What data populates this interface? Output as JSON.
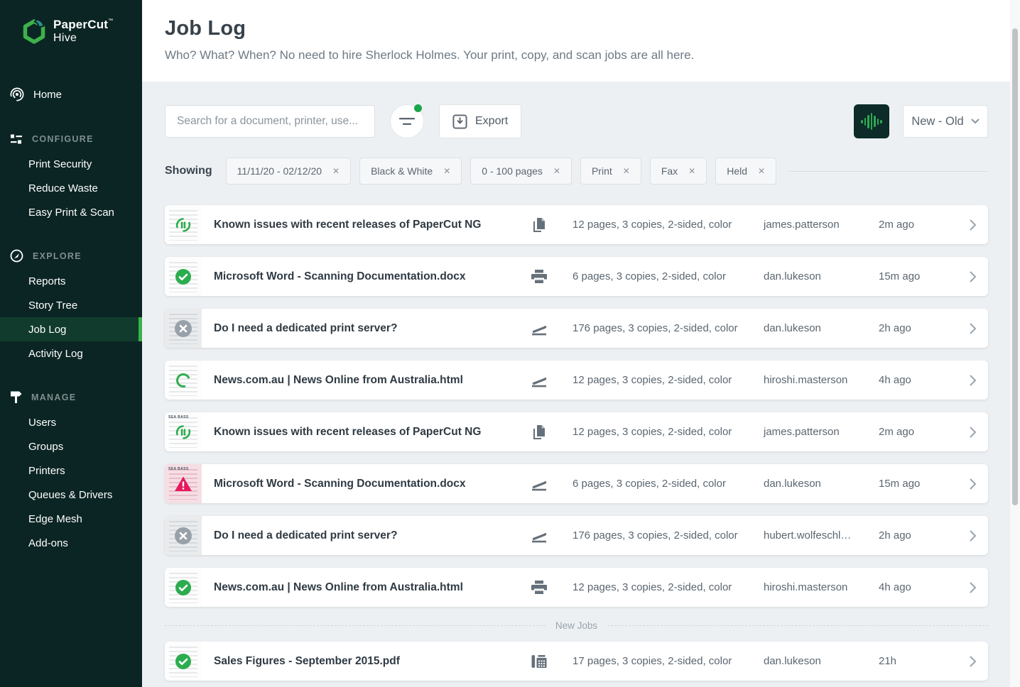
{
  "sidebar": {
    "brand": "PaperCut",
    "brand_tm": "™",
    "product": "Hive",
    "home_label": "Home",
    "sections": [
      {
        "label": "CONFIGURE",
        "items": [
          {
            "label": "Print Security"
          },
          {
            "label": "Reduce Waste"
          },
          {
            "label": "Easy Print & Scan"
          }
        ]
      },
      {
        "label": "EXPLORE",
        "items": [
          {
            "label": "Reports"
          },
          {
            "label": "Story Tree"
          },
          {
            "label": "Job Log",
            "selected": true
          },
          {
            "label": "Activity Log"
          }
        ]
      },
      {
        "label": "MANAGE",
        "items": [
          {
            "label": "Users"
          },
          {
            "label": "Groups"
          },
          {
            "label": "Printers"
          },
          {
            "label": "Queues & Drivers"
          },
          {
            "label": "Edge Mesh"
          },
          {
            "label": "Add-ons"
          }
        ]
      }
    ]
  },
  "header": {
    "title": "Job Log",
    "subtitle": "Who? What? When? No need to hire Sherlock Holmes. Your print, copy, and scan jobs are all here."
  },
  "toolbar": {
    "search_placeholder": "Search for a document, printer, use...",
    "export_label": "Export",
    "sort_label": "New - Old"
  },
  "filters": {
    "showing_label": "Showing",
    "chips": [
      {
        "label": "11/11/20 - 02/12/20"
      },
      {
        "label": "Black & White"
      },
      {
        "label": "0 - 100 pages"
      },
      {
        "label": "Print"
      },
      {
        "label": "Fax"
      },
      {
        "label": "Held"
      }
    ]
  },
  "list": {
    "new_jobs_divider": "New Jobs"
  },
  "jobs": [
    {
      "title": "Known issues with recent releases of PaperCut NG",
      "job_type": "copy",
      "thumb": "papercut",
      "details": "12 pages, 3 copies, 2-sided, color",
      "user": "james.patterson",
      "time": "2m ago"
    },
    {
      "title": "Microsoft Word - Scanning Documentation.docx",
      "job_type": "print",
      "thumb": "check",
      "details": "6 pages, 3 copies, 2-sided, color",
      "user": "dan.lukeson",
      "time": "15m ago"
    },
    {
      "title": "Do I need a dedicated print server?",
      "job_type": "scan",
      "thumb": "canceled",
      "details": "176 pages, 3 copies, 2-sided, color",
      "user": "dan.lukeson",
      "time": "2h ago"
    },
    {
      "title": "News.com.au | News Online from Australia.html",
      "job_type": "scan",
      "thumb": "spinner",
      "details": "12 pages, 3 copies, 2-sided, color",
      "user": "hiroshi.masterson",
      "time": "4h ago"
    },
    {
      "title": "Known issues with recent releases of PaperCut NG",
      "job_type": "copy",
      "thumb": "seabass",
      "details": "12 pages, 3 copies, 2-sided, color",
      "user": "james.patterson",
      "time": "2m ago"
    },
    {
      "title": "Microsoft Word - Scanning Documentation.docx",
      "job_type": "scan",
      "thumb": "seabass-error",
      "details": "6 pages, 3 copies, 2-sided, color",
      "user": "dan.lukeson",
      "time": "15m ago"
    },
    {
      "title": "Do I need a dedicated print server?",
      "job_type": "scan",
      "thumb": "canceled",
      "details": "176 pages, 3 copies, 2-sided, color",
      "user": "hubert.wolfeschl…",
      "time": "2h ago"
    },
    {
      "title": "News.com.au | News Online from Australia.html",
      "job_type": "print",
      "thumb": "check",
      "details": "12 pages, 3 copies, 2-sided, color",
      "user": "hiroshi.masterson",
      "time": "4h ago"
    },
    {
      "title": "Sales Figures - September 2015.pdf",
      "job_type": "fax",
      "thumb": "check",
      "details": "17 pages, 3 copies, 2-sided, color",
      "user": "dan.lukeson",
      "time": "21h"
    }
  ],
  "labels": {
    "sea_bass": "SEA BASS"
  },
  "colors": {
    "accent_green": "#3cb14a",
    "sidebar_bg": "#0b2524",
    "selected_item_bg": "#113c2d",
    "panel_bg": "#edf0f3",
    "success_green": "#2bad4e",
    "error_crimson": "#e5195e",
    "neutral_gray": "#98a1a9"
  }
}
